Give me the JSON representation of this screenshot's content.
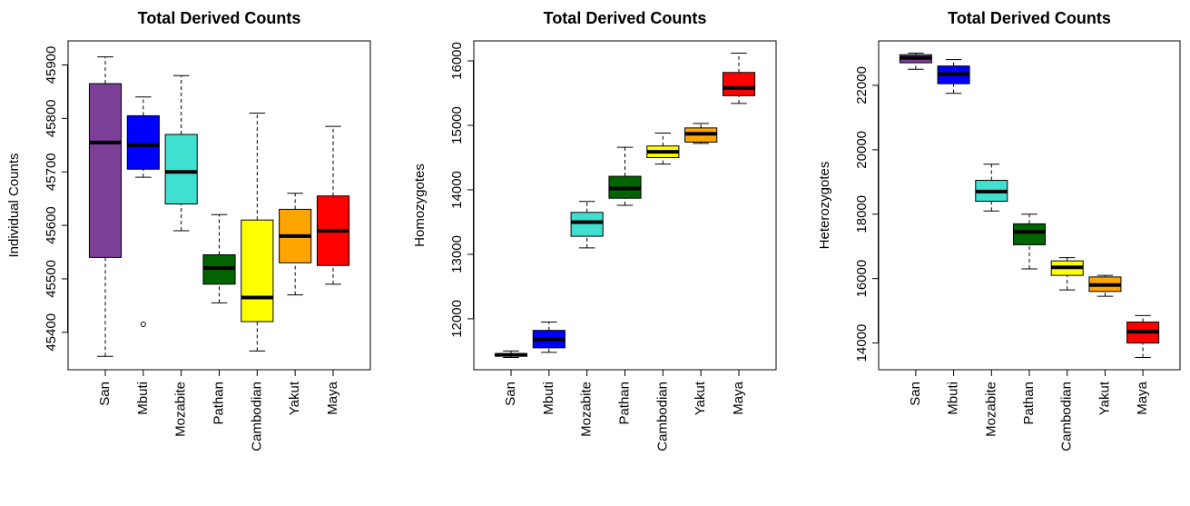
{
  "chart_data": [
    {
      "type": "box",
      "title": "Total Derived Counts",
      "ylabel": "Individual Counts",
      "categories": [
        "San",
        "Mbuti",
        "Mozabite",
        "Pathan",
        "Cambodian",
        "Yakut",
        "Maya"
      ],
      "colors": [
        "#7b3f98",
        "#0000ff",
        "#40e0d0",
        "#006400",
        "#ffff00",
        "#ffa500",
        "#ff0000"
      ],
      "boxes": [
        {
          "min": 45355,
          "q1": 45540,
          "median": 45755,
          "q3": 45865,
          "max": 45915
        },
        {
          "min": 45690,
          "q1": 45705,
          "median": 45750,
          "q3": 45805,
          "max": 45840,
          "outliers": [
            45415
          ]
        },
        {
          "min": 45590,
          "q1": 45640,
          "median": 45700,
          "q3": 45770,
          "max": 45880
        },
        {
          "min": 45455,
          "q1": 45490,
          "median": 45520,
          "q3": 45545,
          "max": 45620
        },
        {
          "min": 45365,
          "q1": 45420,
          "median": 45465,
          "q3": 45610,
          "max": 45810
        },
        {
          "min": 45470,
          "q1": 45530,
          "median": 45580,
          "q3": 45630,
          "max": 45660
        },
        {
          "min": 45490,
          "q1": 45525,
          "median": 45590,
          "q3": 45655,
          "max": 45785
        }
      ],
      "ylim": [
        45330,
        45945
      ],
      "yticks": [
        45400,
        45500,
        45600,
        45700,
        45800,
        45900
      ]
    },
    {
      "type": "box",
      "title": "Total Derived Counts",
      "ylabel": "Homozygotes",
      "categories": [
        "San",
        "Mbuti",
        "Mozabite",
        "Pathan",
        "Cambodian",
        "Yakut",
        "Maya"
      ],
      "colors": [
        "#7b3f98",
        "#0000ff",
        "#40e0d0",
        "#006400",
        "#ffff00",
        "#ffa500",
        "#ff0000"
      ],
      "boxes": [
        {
          "min": 11400,
          "q1": 11420,
          "median": 11440,
          "q3": 11460,
          "max": 11500
        },
        {
          "min": 11480,
          "q1": 11550,
          "median": 11680,
          "q3": 11820,
          "max": 11950
        },
        {
          "min": 13100,
          "q1": 13280,
          "median": 13500,
          "q3": 13650,
          "max": 13820
        },
        {
          "min": 13760,
          "q1": 13870,
          "median": 14020,
          "q3": 14210,
          "max": 14660
        },
        {
          "min": 14400,
          "q1": 14500,
          "median": 14590,
          "q3": 14680,
          "max": 14880
        },
        {
          "min": 14720,
          "q1": 14740,
          "median": 14870,
          "q3": 14960,
          "max": 15030
        },
        {
          "min": 15340,
          "q1": 15460,
          "median": 15580,
          "q3": 15820,
          "max": 16120
        }
      ],
      "ylim": [
        11210,
        16310
      ],
      "yticks": [
        12000,
        13000,
        14000,
        15000,
        16000
      ]
    },
    {
      "type": "box",
      "title": "Total Derived Counts",
      "ylabel": "Heterozygotes",
      "categories": [
        "San",
        "Mbuti",
        "Mozabite",
        "Pathan",
        "Cambodian",
        "Yakut",
        "Maya"
      ],
      "colors": [
        "#7b3f98",
        "#0000ff",
        "#40e0d0",
        "#006400",
        "#ffff00",
        "#ffa500",
        "#ff0000"
      ],
      "boxes": [
        {
          "min": 22500,
          "q1": 22700,
          "median": 22850,
          "q3": 22950,
          "max": 23000
        },
        {
          "min": 21750,
          "q1": 22050,
          "median": 22350,
          "q3": 22600,
          "max": 22800
        },
        {
          "min": 18100,
          "q1": 18400,
          "median": 18700,
          "q3": 19050,
          "max": 19550
        },
        {
          "min": 16300,
          "q1": 17050,
          "median": 17450,
          "q3": 17700,
          "max": 18000
        },
        {
          "min": 15650,
          "q1": 16100,
          "median": 16350,
          "q3": 16550,
          "max": 16650
        },
        {
          "min": 15450,
          "q1": 15600,
          "median": 15800,
          "q3": 16050,
          "max": 16100
        },
        {
          "min": 13550,
          "q1": 14000,
          "median": 14350,
          "q3": 14650,
          "max": 14850
        }
      ],
      "ylim": [
        13170,
        23380
      ],
      "yticks": [
        14000,
        16000,
        18000,
        20000,
        22000
      ]
    }
  ]
}
